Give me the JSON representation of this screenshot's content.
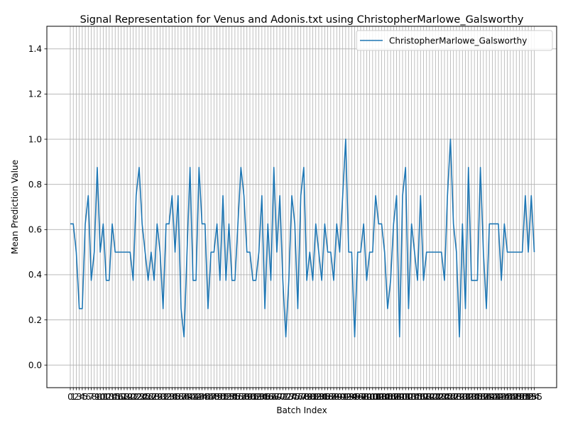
{
  "chart_data": {
    "type": "line",
    "title": "Signal Representation for Venus and Adonis.txt using ChristopherMarlowe_Galsworthy",
    "xlabel": "Batch Index",
    "ylabel": "Mean Prediction Value",
    "ylim": [
      -0.1,
      1.5
    ],
    "yticks": [
      "0.0",
      "0.2",
      "0.4",
      "0.6",
      "0.8",
      "1.0",
      "1.2",
      "1.4"
    ],
    "grid": true,
    "legend_position": "upper-right",
    "x_start": 0,
    "series": [
      {
        "name": "ChristopherMarlowe_Galsworthy",
        "color": "#1f77b4",
        "values": [
          0.625,
          0.625,
          0.5,
          0.25,
          0.25,
          0.625,
          0.75,
          0.375,
          0.5,
          0.875,
          0.5,
          0.625,
          0.375,
          0.375,
          0.625,
          0.5,
          0.5,
          0.5,
          0.5,
          0.5,
          0.5,
          0.375,
          0.75,
          0.875,
          0.625,
          0.5,
          0.375,
          0.5,
          0.375,
          0.625,
          0.5,
          0.25,
          0.625,
          0.625,
          0.75,
          0.5,
          0.75,
          0.25,
          0.125,
          0.5,
          0.875,
          0.375,
          0.375,
          0.875,
          0.625,
          0.625,
          0.25,
          0.5,
          0.5,
          0.625,
          0.375,
          0.75,
          0.375,
          0.625,
          0.375,
          0.375,
          0.625,
          0.875,
          0.75,
          0.5,
          0.5,
          0.375,
          0.375,
          0.5,
          0.75,
          0.25,
          0.625,
          0.375,
          0.875,
          0.5,
          0.75,
          0.375,
          0.125,
          0.375,
          0.75,
          0.625,
          0.25,
          0.75,
          0.875,
          0.375,
          0.5,
          0.375,
          0.625,
          0.5,
          0.375,
          0.625,
          0.5,
          0.5,
          0.375,
          0.625,
          0.5,
          0.75,
          1.0,
          0.5,
          0.5,
          0.125,
          0.5,
          0.5,
          0.625,
          0.375,
          0.5,
          0.5,
          0.75,
          0.625,
          0.625,
          0.5,
          0.25,
          0.375,
          0.625,
          0.75,
          0.125,
          0.75,
          0.875,
          0.25,
          0.625,
          0.5,
          0.375,
          0.75,
          0.375,
          0.5,
          0.5,
          0.5,
          0.5,
          0.5,
          0.5,
          0.375,
          0.75,
          1.0,
          0.625,
          0.5,
          0.125,
          0.625,
          0.25,
          0.875,
          0.375,
          0.375,
          0.375,
          0.875,
          0.5,
          0.25,
          0.625,
          0.625,
          0.625,
          0.625,
          0.375,
          0.625,
          0.5,
          0.5,
          0.5,
          0.5,
          0.5,
          0.5,
          0.75,
          0.5,
          0.75,
          0.5
        ]
      }
    ]
  }
}
